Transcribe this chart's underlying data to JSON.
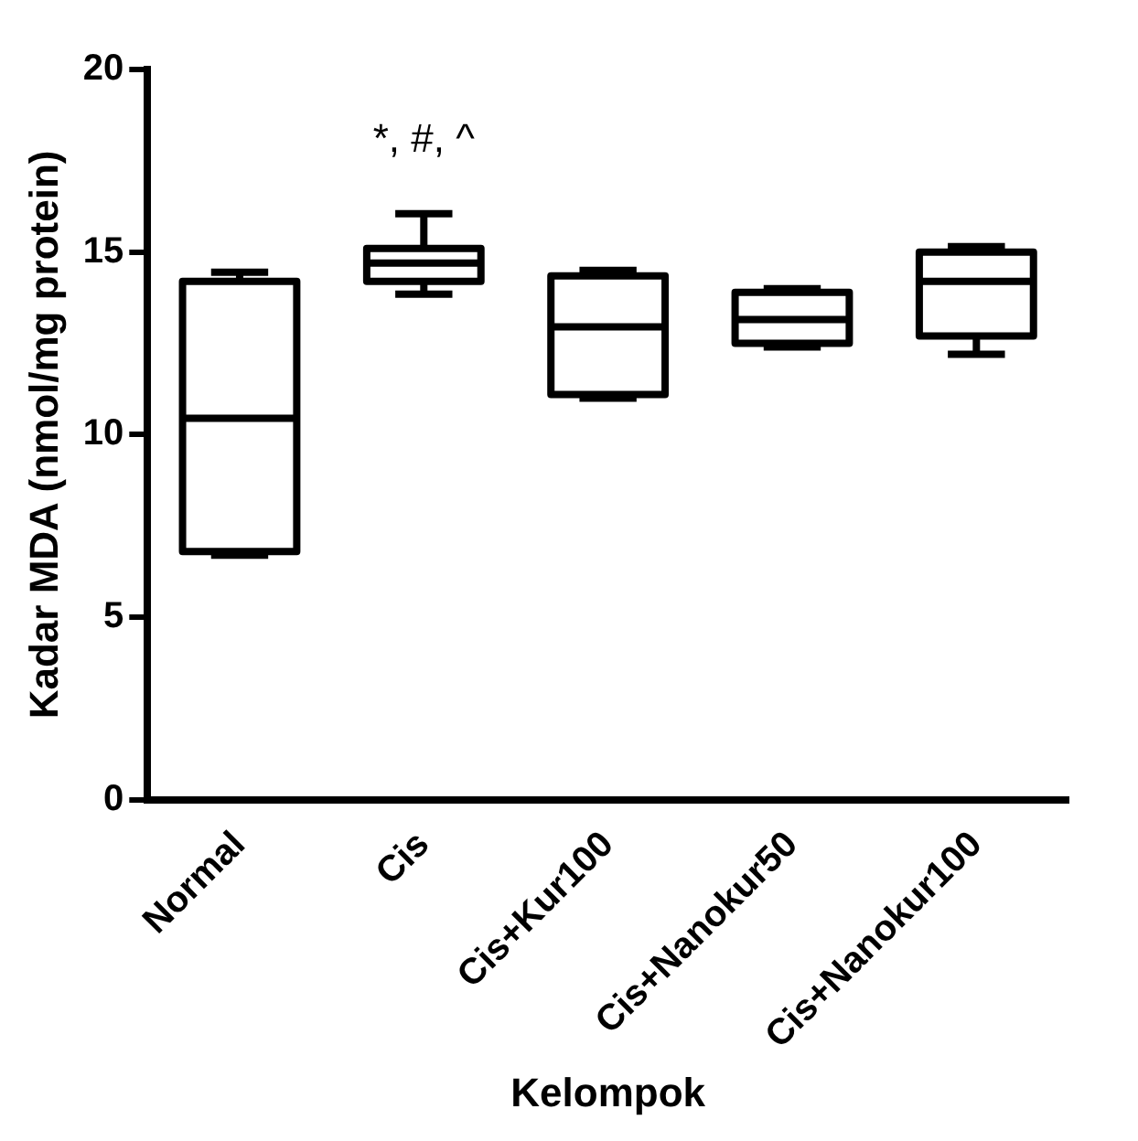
{
  "chart_data": {
    "type": "box",
    "xlabel": "Kelompok",
    "ylabel": "Kadar MDA (nmol/mg protein)",
    "categories": [
      "Normal",
      "Cis",
      "Cis+Kur100",
      "Cis+Nanokur50",
      "Cis+Nanokur100"
    ],
    "boxes": [
      {
        "low": 6.7,
        "q1": 6.8,
        "median": 10.45,
        "q3": 14.2,
        "high": 14.45
      },
      {
        "low": 13.85,
        "q1": 14.2,
        "median": 14.7,
        "q3": 15.1,
        "high": 16.05
      },
      {
        "low": 11.0,
        "q1": 11.1,
        "median": 12.95,
        "q3": 14.35,
        "high": 14.5
      },
      {
        "low": 12.4,
        "q1": 12.5,
        "median": 13.15,
        "q3": 13.9,
        "high": 14.0
      },
      {
        "low": 12.2,
        "q1": 12.7,
        "median": 14.2,
        "q3": 15.0,
        "high": 15.15
      }
    ],
    "ylim": [
      0,
      20
    ],
    "yticks": [
      0,
      5,
      10,
      15,
      20
    ],
    "grid": false,
    "legend": false,
    "annotations": [
      "*, #, ^"
    ],
    "color": "#000000"
  }
}
